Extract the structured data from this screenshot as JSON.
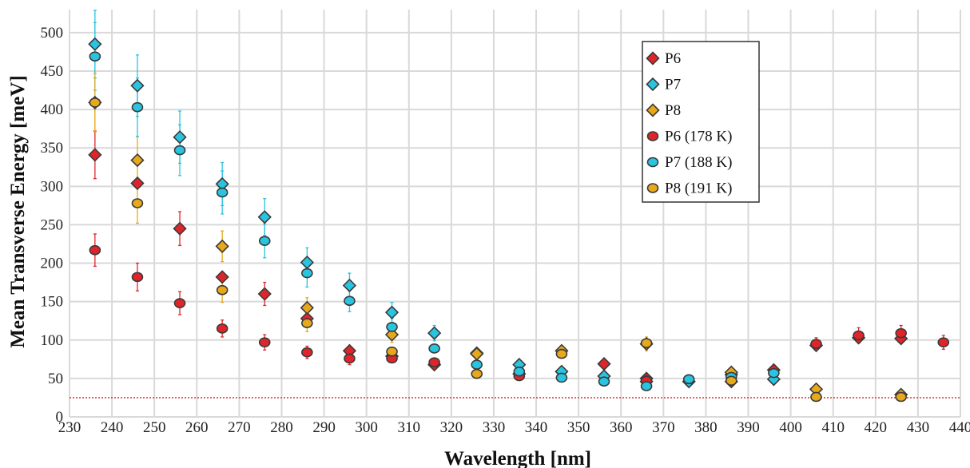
{
  "chart_data": {
    "type": "scatter",
    "xlabel": "Wavelength [nm]",
    "ylabel": "Mean Transverse Energy [meV]",
    "xlim": [
      230,
      440
    ],
    "ylim": [
      0,
      530
    ],
    "xticks": [
      230,
      240,
      250,
      260,
      270,
      280,
      290,
      300,
      310,
      320,
      330,
      340,
      350,
      360,
      370,
      380,
      390,
      400,
      410,
      420,
      430,
      440
    ],
    "yticks": [
      0,
      50,
      100,
      150,
      200,
      250,
      300,
      350,
      400,
      450,
      500
    ],
    "grid": true,
    "legend_position": "top-right",
    "reference_line": {
      "y": 25,
      "style": "dotted",
      "color": "#e03030"
    },
    "series": [
      {
        "name": "P6",
        "marker": "diamond",
        "color": "#e0252a",
        "points": [
          [
            236,
            341,
            31
          ],
          [
            246,
            304,
            0
          ],
          [
            256,
            245,
            22
          ],
          [
            266,
            182,
            0
          ],
          [
            276,
            160,
            15
          ],
          [
            286,
            128,
            0
          ],
          [
            296,
            86,
            0
          ],
          [
            306,
            79,
            0
          ],
          [
            316,
            68,
            0
          ],
          [
            336,
            56,
            0
          ],
          [
            356,
            69,
            0
          ],
          [
            366,
            50,
            0
          ],
          [
            386,
            46,
            0
          ],
          [
            396,
            61,
            0
          ],
          [
            406,
            93,
            0
          ],
          [
            416,
            103,
            0
          ],
          [
            426,
            102,
            0
          ]
        ]
      },
      {
        "name": "P7",
        "marker": "diamond",
        "color": "#29c4e0",
        "points": [
          [
            236,
            485,
            44
          ],
          [
            246,
            431,
            40
          ],
          [
            256,
            364,
            34
          ],
          [
            266,
            303,
            28
          ],
          [
            276,
            260,
            24
          ],
          [
            286,
            201,
            19
          ],
          [
            296,
            171,
            16
          ],
          [
            306,
            136,
            13
          ],
          [
            316,
            109,
            10
          ],
          [
            326,
            83,
            0
          ],
          [
            336,
            68,
            0
          ],
          [
            346,
            59,
            0
          ],
          [
            356,
            53,
            0
          ],
          [
            366,
            46,
            0
          ],
          [
            376,
            46,
            0
          ],
          [
            386,
            55,
            0
          ],
          [
            396,
            49,
            0
          ]
        ]
      },
      {
        "name": "P8",
        "marker": "diamond",
        "color": "#e8a81c",
        "points": [
          [
            236,
            409,
            38
          ],
          [
            246,
            334,
            31
          ],
          [
            266,
            222,
            20
          ],
          [
            286,
            142,
            13
          ],
          [
            306,
            107,
            10
          ],
          [
            326,
            82,
            0
          ],
          [
            346,
            86,
            0
          ],
          [
            366,
            95,
            9
          ],
          [
            386,
            58,
            0
          ],
          [
            406,
            36,
            0
          ],
          [
            426,
            29,
            0
          ]
        ]
      },
      {
        "name": "P6 (178 K)",
        "marker": "circle",
        "color": "#e0252a",
        "points": [
          [
            236,
            217,
            21
          ],
          [
            246,
            182,
            18
          ],
          [
            256,
            148,
            15
          ],
          [
            266,
            115,
            11
          ],
          [
            276,
            97,
            10
          ],
          [
            286,
            84,
            8
          ],
          [
            296,
            76,
            8
          ],
          [
            306,
            76,
            0
          ],
          [
            316,
            71,
            0
          ],
          [
            336,
            53,
            0
          ],
          [
            366,
            47,
            0
          ],
          [
            406,
            95,
            8
          ],
          [
            416,
            106,
            10
          ],
          [
            426,
            109,
            10
          ],
          [
            436,
            97,
            9
          ]
        ]
      },
      {
        "name": "P7 (188 K)",
        "marker": "circle",
        "color": "#29c4e0",
        "points": [
          [
            236,
            469,
            44
          ],
          [
            246,
            403,
            38
          ],
          [
            256,
            347,
            33
          ],
          [
            266,
            292,
            28
          ],
          [
            276,
            229,
            22
          ],
          [
            286,
            187,
            18
          ],
          [
            296,
            151,
            14
          ],
          [
            306,
            117,
            11
          ],
          [
            316,
            89,
            0
          ],
          [
            326,
            68,
            0
          ],
          [
            336,
            59,
            0
          ],
          [
            346,
            51,
            0
          ],
          [
            356,
            46,
            0
          ],
          [
            366,
            40,
            0
          ],
          [
            376,
            49,
            0
          ],
          [
            386,
            52,
            0
          ],
          [
            396,
            57,
            0
          ]
        ]
      },
      {
        "name": "P8 (191 K)",
        "marker": "circle",
        "color": "#e8a81c",
        "points": [
          [
            236,
            409,
            38
          ],
          [
            246,
            278,
            26
          ],
          [
            266,
            165,
            16
          ],
          [
            286,
            122,
            11
          ],
          [
            306,
            85,
            0
          ],
          [
            326,
            56,
            0
          ],
          [
            346,
            82,
            0
          ],
          [
            366,
            96,
            0
          ],
          [
            386,
            47,
            0
          ],
          [
            406,
            26,
            0
          ],
          [
            426,
            26,
            0
          ]
        ]
      }
    ]
  }
}
